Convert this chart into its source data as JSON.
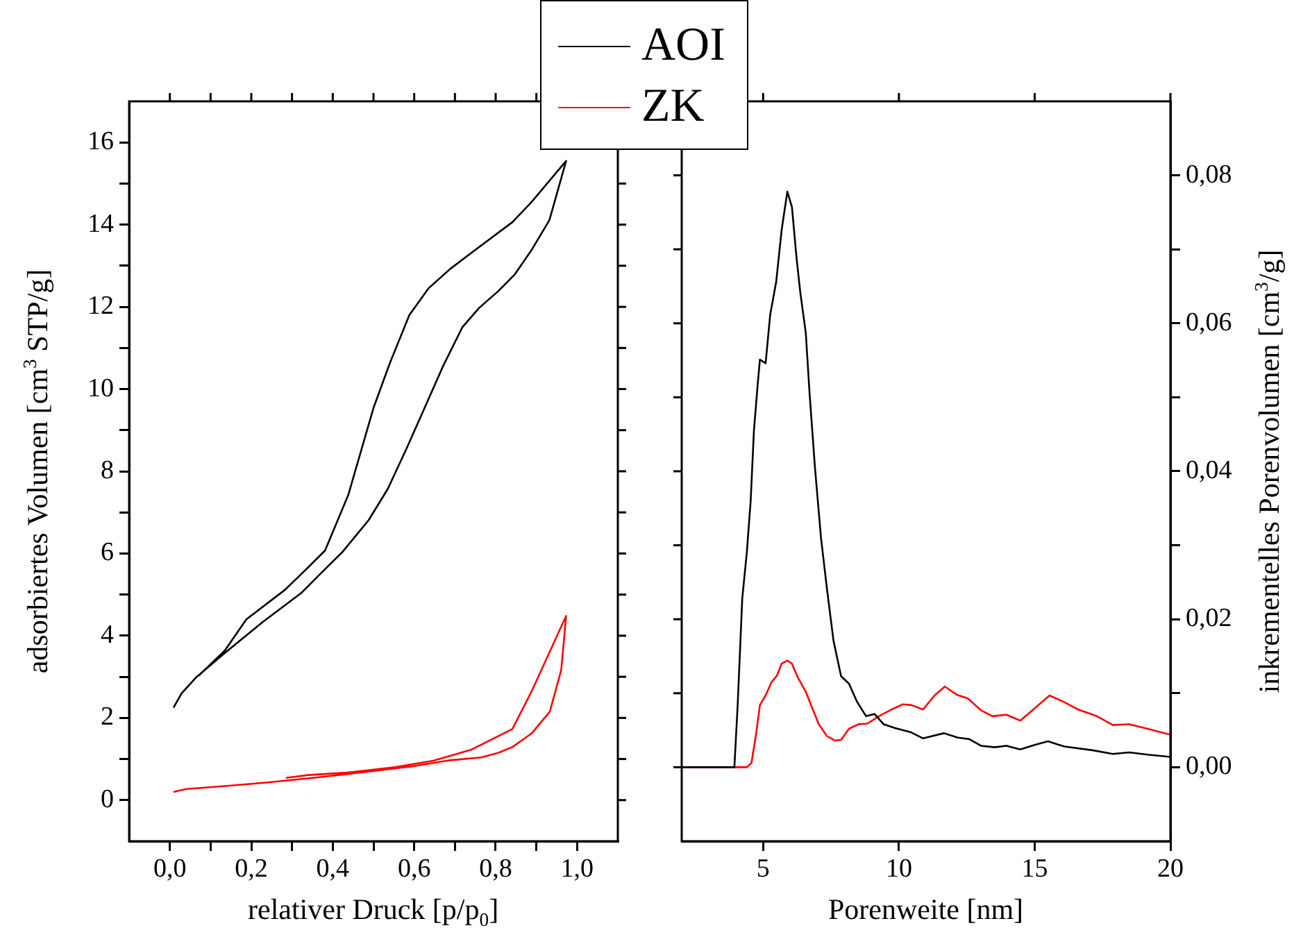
{
  "chart_data": [
    {
      "type": "line",
      "xlabel": "relativer Druck [p/p$_{0}$]",
      "ylabel": "adsorbiertes Volumen [cm$^{3}$ STP/g]",
      "xlim": [
        -0.1,
        1.1
      ],
      "xticks": [
        {
          "value": 0,
          "label": "0,0"
        },
        {
          "value": 0.1,
          "label": null
        },
        {
          "value": 0.2,
          "label": "0,2"
        },
        {
          "value": 0.3,
          "label": null
        },
        {
          "value": 0.4,
          "label": "0,4"
        },
        {
          "value": 0.5,
          "label": null
        },
        {
          "value": 0.6,
          "label": "0,6"
        },
        {
          "value": 0.7,
          "label": null
        },
        {
          "value": 0.8,
          "label": "0,8"
        },
        {
          "value": 0.9,
          "label": null
        },
        {
          "value": 1.0,
          "label": "1,0"
        }
      ],
      "ylim": [
        -1,
        17
      ],
      "yticks": [
        0,
        {
          "value": 1,
          "label": null
        },
        2,
        {
          "value": 3,
          "label": null
        },
        4,
        {
          "value": 5,
          "label": null
        },
        6,
        {
          "value": 7,
          "label": null
        },
        8,
        {
          "value": 9,
          "label": null
        },
        10,
        {
          "value": 11,
          "label": null
        },
        12,
        {
          "value": 13,
          "label": null
        },
        14,
        {
          "value": 15,
          "label": null
        },
        16
      ],
      "marker": "none",
      "legend": "top right",
      "series": [
        {
          "name": "AOI",
          "color": "#000000",
          "x": [
            0.009,
            0.029,
            0.065,
            0.135,
            0.229,
            0.324,
            0.371,
            0.424,
            0.488,
            0.535,
            0.582,
            0.629,
            0.671,
            0.718,
            0.759,
            0.806,
            0.847,
            0.888,
            0.932,
            0.973,
            0.888,
            0.841,
            0.741,
            0.688,
            0.635,
            0.588,
            0.541,
            0.5,
            0.438,
            0.381,
            0.331,
            0.282,
            0.188,
            0.135,
            0.071
          ],
          "values": [
            2.25,
            2.6,
            2.99,
            3.58,
            4.34,
            5.05,
            5.52,
            6.04,
            6.81,
            7.57,
            8.57,
            9.62,
            10.56,
            11.5,
            11.97,
            12.38,
            12.79,
            13.38,
            14.11,
            15.55,
            14.55,
            14.06,
            13.32,
            12.92,
            12.45,
            11.8,
            10.65,
            9.54,
            7.42,
            6.07,
            5.58,
            5.11,
            4.4,
            3.64,
            3.03
          ]
        },
        {
          "name": "ZK",
          "color": "#ff0000",
          "x": [
            0.009,
            0.041,
            0.147,
            0.241,
            0.359,
            0.476,
            0.594,
            0.688,
            0.765,
            0.806,
            0.841,
            0.888,
            0.933,
            0.961,
            0.973,
            0.888,
            0.841,
            0.741,
            0.647,
            0.553,
            0.435,
            0.341,
            0.285
          ],
          "values": [
            0.2,
            0.27,
            0.35,
            0.43,
            0.55,
            0.68,
            0.82,
            0.97,
            1.04,
            1.15,
            1.29,
            1.62,
            2.15,
            3.17,
            4.48,
            2.64,
            1.73,
            1.23,
            0.96,
            0.8,
            0.67,
            0.61,
            0.54
          ]
        }
      ]
    },
    {
      "type": "line",
      "xlabel": "Porenweite [nm]",
      "y2label": "inkrementelles Porenvolumen [cm$^{3}$/g]",
      "xlim": [
        2,
        20
      ],
      "xticks": [
        5,
        10,
        15,
        20
      ],
      "y2lim": [
        -0.01,
        0.09
      ],
      "y2ticks": [
        {
          "value": 0,
          "label": "0,00"
        },
        {
          "value": 0.01,
          "label": null
        },
        {
          "value": 0.02,
          "label": "0,02"
        },
        {
          "value": 0.03,
          "label": null
        },
        {
          "value": 0.04,
          "label": "0,04"
        },
        {
          "value": 0.05,
          "label": null
        },
        {
          "value": 0.06,
          "label": "0,06"
        },
        {
          "value": 0.07,
          "label": null
        },
        {
          "value": 0.08,
          "label": "0,08"
        }
      ],
      "marker": "none",
      "series": [
        {
          "color": "#000000",
          "axis": "y2",
          "x": [
            2.0,
            3.94,
            4.06,
            4.23,
            4.4,
            4.54,
            4.66,
            4.8,
            4.88,
            5.09,
            5.26,
            5.48,
            5.68,
            5.89,
            6.06,
            6.23,
            6.37,
            6.57,
            6.71,
            6.91,
            7.13,
            7.35,
            7.59,
            7.87,
            8.16,
            8.45,
            8.79,
            9.1,
            9.44,
            9.86,
            10.46,
            10.89,
            11.66,
            12.17,
            12.59,
            13.02,
            13.53,
            13.96,
            14.47,
            14.98,
            15.49,
            16.09,
            17.12,
            17.88,
            18.48,
            19.16,
            20.0
          ],
          "values": [
            0,
            0,
            0.0083,
            0.0228,
            0.0291,
            0.036,
            0.0455,
            0.0518,
            0.0551,
            0.0546,
            0.0612,
            0.0656,
            0.0726,
            0.0778,
            0.0757,
            0.0688,
            0.0641,
            0.0587,
            0.0505,
            0.0404,
            0.031,
            0.0241,
            0.0171,
            0.0123,
            0.0113,
            0.0089,
            0.0069,
            0.0072,
            0.0058,
            0.0053,
            0.0047,
            0.0039,
            0.0046,
            0.004,
            0.0038,
            0.0029,
            0.0027,
            0.0029,
            0.0024,
            0.003,
            0.0035,
            0.0028,
            0.0023,
            0.0018,
            0.002,
            0.0017,
            0.0014
          ]
        },
        {
          "color": "#ff0000",
          "axis": "y2",
          "x": [
            2.0,
            4.4,
            4.57,
            4.74,
            4.88,
            5.09,
            5.31,
            5.51,
            5.68,
            5.89,
            6.06,
            6.28,
            6.57,
            6.84,
            7.05,
            7.35,
            7.65,
            7.87,
            8.16,
            8.5,
            8.84,
            9.27,
            9.78,
            10.15,
            10.46,
            10.89,
            11.31,
            11.69,
            12.13,
            12.54,
            13.02,
            13.45,
            13.96,
            14.47,
            14.98,
            15.55,
            16.09,
            16.6,
            17.29,
            17.88,
            18.48,
            19.16,
            20.0
          ],
          "values": [
            0,
            0,
            0.0006,
            0.0045,
            0.0084,
            0.0097,
            0.0115,
            0.0124,
            0.014,
            0.0144,
            0.014,
            0.0121,
            0.0102,
            0.0077,
            0.0058,
            0.0042,
            0.0036,
            0.0037,
            0.0052,
            0.0058,
            0.0059,
            0.0069,
            0.0079,
            0.0085,
            0.0084,
            0.0078,
            0.0097,
            0.0109,
            0.0098,
            0.0093,
            0.0077,
            0.0069,
            0.0071,
            0.0063,
            0.0079,
            0.0097,
            0.0088,
            0.0078,
            0.0069,
            0.0057,
            0.0058,
            0.0052,
            0.0044
          ]
        }
      ]
    }
  ]
}
